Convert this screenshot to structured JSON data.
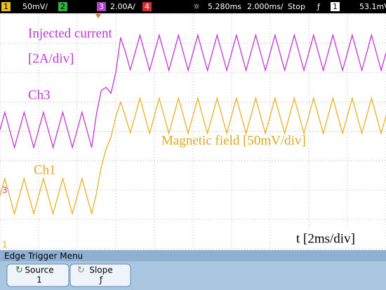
{
  "status_bar": {
    "ch1_num": "1",
    "ch1_scale": "50mV/",
    "ch2_num": "2",
    "ch3_num": "3",
    "ch3_scale": "2.00A/",
    "ch4_num": "4",
    "delay": "5.280ms",
    "timebase": "2.000ms/",
    "run_state": "Stop",
    "trigger_slope": "ƒ",
    "trigger_source": "1",
    "trigger_level": "53.1mV"
  },
  "chart_data": {
    "type": "line",
    "annotations": [
      "Injected current",
      "[2A/div]",
      "Ch3",
      "Magnetic field [50mV/div]",
      "Ch1",
      "t [2ms/div]"
    ],
    "xlim": [
      0,
      10
    ],
    "ylim": [
      0,
      8
    ],
    "grid": true,
    "x": [
      0,
      0.125,
      0.25,
      0.375,
      0.5,
      0.625,
      0.75,
      0.875,
      1,
      1.125,
      1.25,
      1.375,
      1.5,
      1.625,
      1.75,
      1.875,
      2,
      2.125,
      2.25,
      2.375,
      2.5,
      2.625,
      2.75,
      2.875,
      3,
      3.125,
      3.25,
      3.375,
      3.5,
      3.625,
      3.75,
      3.875,
      4,
      4.125,
      4.25,
      4.375,
      4.5,
      4.625,
      4.75,
      4.875,
      5,
      5.125,
      5.25,
      5.375,
      5.5,
      5.625,
      5.75,
      5.875,
      6,
      6.125,
      6.25,
      6.375,
      6.5,
      6.625,
      6.75,
      6.875,
      7,
      7.125,
      7.25,
      7.375,
      7.5,
      7.625,
      7.75,
      7.875,
      8,
      8.125,
      8.25,
      8.375,
      8.5,
      8.625,
      8.75,
      8.875,
      9,
      9.125,
      9.25,
      9.375,
      9.5,
      9.625,
      9.75,
      9.875,
      10
    ],
    "series": [
      {
        "name": "Ch3",
        "color": "#c238d4",
        "values": [
          4.05,
          4.65,
          4.05,
          3.45,
          4.05,
          4.65,
          4.05,
          3.45,
          4.05,
          4.65,
          4.05,
          3.45,
          4.05,
          4.65,
          4.05,
          3.45,
          4.05,
          4.65,
          4.05,
          3.45,
          4.6,
          5.4,
          5.5,
          5.3,
          6.0,
          7.2,
          6.7,
          6.1,
          6.68,
          7.28,
          6.68,
          6.08,
          6.68,
          7.28,
          6.68,
          6.08,
          6.68,
          7.28,
          6.68,
          6.08,
          6.68,
          7.28,
          6.68,
          6.08,
          6.68,
          7.28,
          6.68,
          6.08,
          6.68,
          7.28,
          6.68,
          6.08,
          6.68,
          7.28,
          6.68,
          6.08,
          6.68,
          7.28,
          6.68,
          6.08,
          6.68,
          7.28,
          6.68,
          6.08,
          6.68,
          7.28,
          6.68,
          6.08,
          6.68,
          7.28,
          6.68,
          6.08,
          6.68,
          7.28,
          6.68,
          6.08,
          6.68,
          7.28,
          6.68,
          6.08,
          6.68
        ]
      },
      {
        "name": "Ch1",
        "color": "#e8b224",
        "values": [
          1.79,
          2.39,
          1.79,
          1.19,
          1.79,
          2.39,
          1.79,
          1.19,
          1.79,
          2.39,
          1.79,
          1.19,
          1.79,
          2.39,
          1.79,
          1.19,
          1.79,
          2.39,
          1.79,
          1.19,
          1.9,
          2.8,
          3.4,
          3.8,
          4.5,
          5.0,
          4.5,
          3.95,
          4.53,
          5.13,
          4.53,
          3.93,
          4.53,
          5.13,
          4.53,
          3.93,
          4.53,
          5.13,
          4.53,
          3.93,
          4.53,
          5.13,
          4.53,
          3.93,
          4.53,
          5.13,
          4.53,
          3.93,
          4.53,
          5.13,
          4.53,
          3.93,
          4.53,
          5.13,
          4.53,
          3.93,
          4.53,
          5.13,
          4.53,
          3.93,
          4.53,
          5.13,
          4.53,
          3.93,
          4.53,
          5.13,
          4.53,
          3.93,
          4.53,
          5.13,
          4.53,
          3.93,
          4.53,
          5.13,
          4.53,
          3.93,
          4.53,
          5.13,
          4.53,
          3.93,
          4.53
        ]
      }
    ]
  },
  "menu": {
    "title": "Edge Trigger Menu",
    "softkeys": [
      {
        "label": "Source",
        "value": "1"
      },
      {
        "label": "Slope",
        "value": "ƒ"
      }
    ]
  }
}
